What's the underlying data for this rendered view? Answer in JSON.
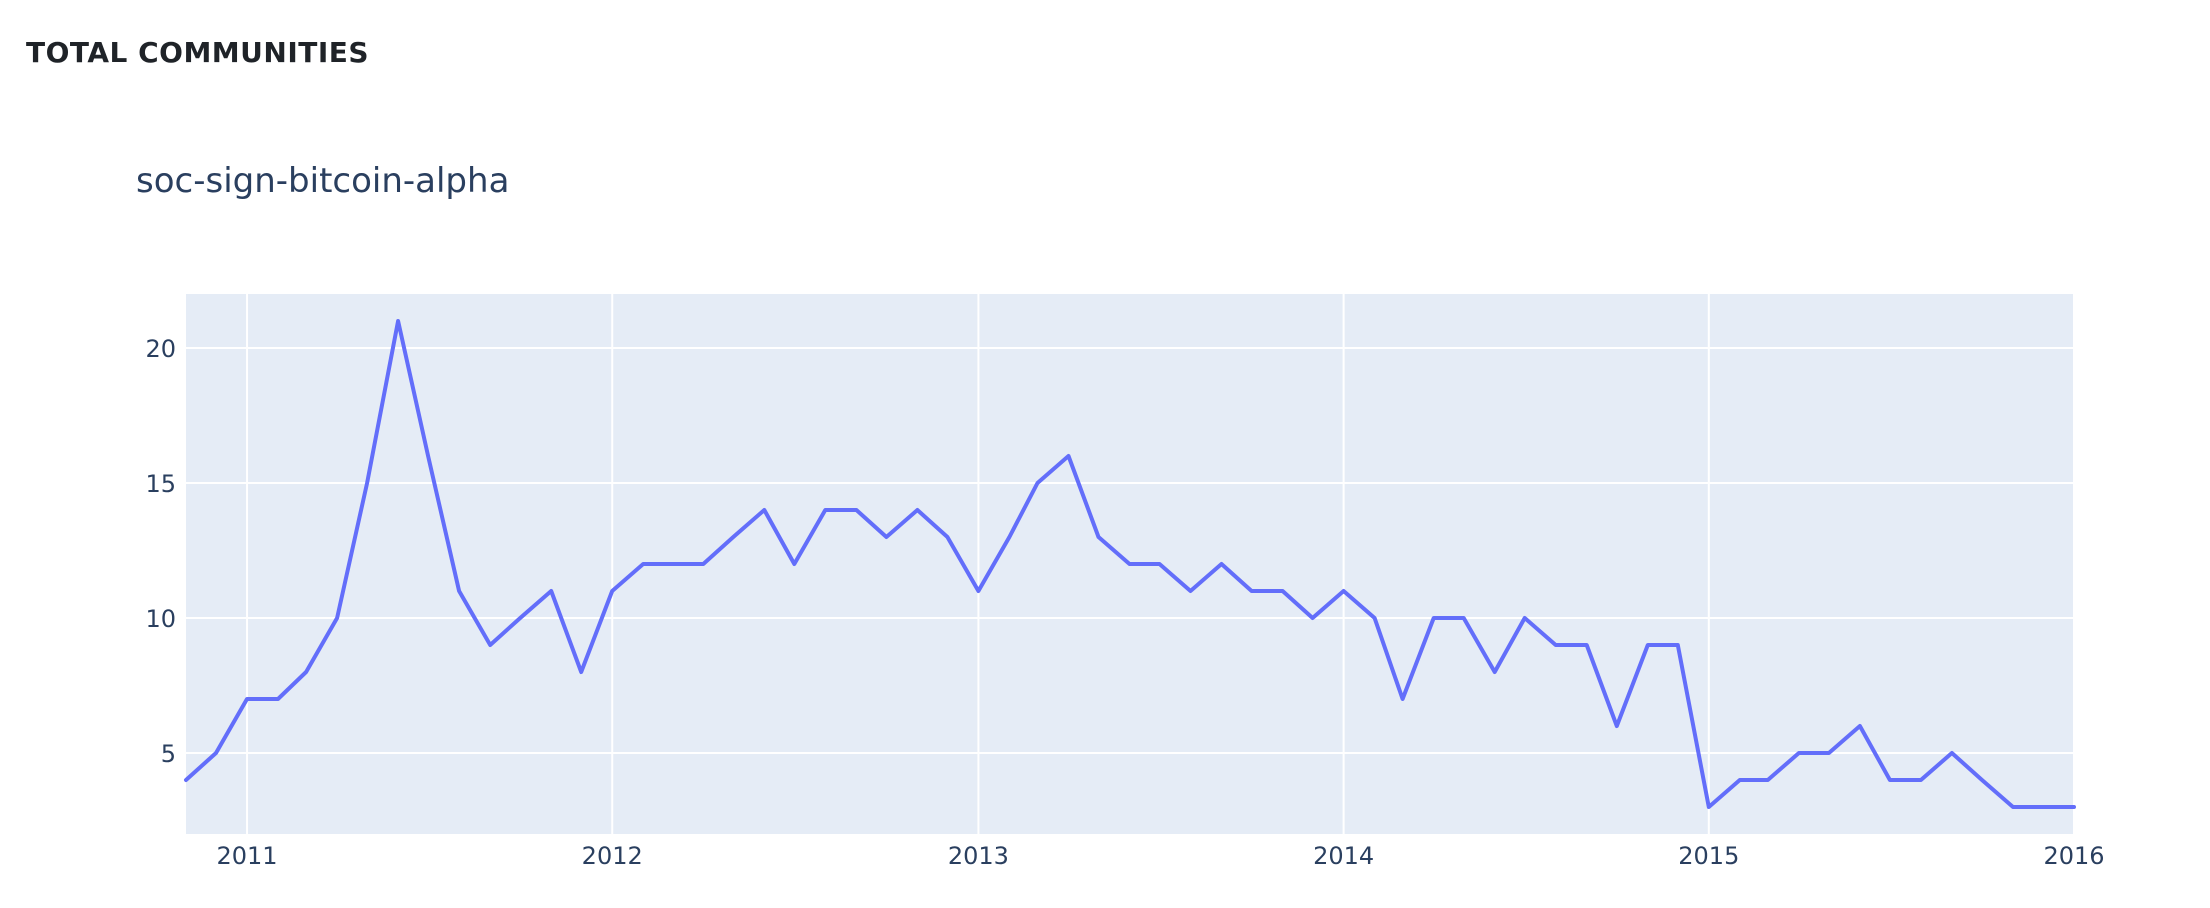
{
  "page": {
    "section_heading": "TOTAL COMMUNITIES"
  },
  "chart_data": {
    "type": "line",
    "title": "soc-sign-bitcoin-alpha",
    "xlabel": "",
    "ylabel": "",
    "x_range": [
      "2010-11-01",
      "2016-01-01"
    ],
    "ylim": [
      2,
      22
    ],
    "x_ticks": [
      "2011-01-01",
      "2012-01-01",
      "2013-01-01",
      "2014-01-01",
      "2015-01-01",
      "2016-01-01"
    ],
    "x_tick_labels": [
      "2011",
      "2012",
      "2013",
      "2014",
      "2015",
      "2016"
    ],
    "y_ticks": [
      5,
      10,
      15,
      20
    ],
    "y_tick_labels": [
      "5",
      "10",
      "15",
      "20"
    ],
    "grid": true,
    "colors": {
      "line": "#636efa",
      "plot_bg": "#e5ecf6",
      "grid": "#ffffff",
      "text": "#2a3f5f"
    },
    "series": [
      {
        "x": [
          "2010-11-01",
          "2010-12-01",
          "2011-01-01",
          "2011-02-01",
          "2011-03-01",
          "2011-04-01",
          "2011-05-01",
          "2011-06-01",
          "2011-07-01",
          "2011-08-01",
          "2011-09-01",
          "2011-10-01",
          "2011-11-01",
          "2011-12-01",
          "2012-01-01",
          "2012-02-01",
          "2012-03-01",
          "2012-04-01",
          "2012-05-01",
          "2012-06-01",
          "2012-07-01",
          "2012-08-01",
          "2012-09-01",
          "2012-10-01",
          "2012-11-01",
          "2012-12-01",
          "2013-01-01",
          "2013-02-01",
          "2013-03-01",
          "2013-04-01",
          "2013-05-01",
          "2013-06-01",
          "2013-07-01",
          "2013-08-01",
          "2013-09-01",
          "2013-10-01",
          "2013-11-01",
          "2013-12-01",
          "2014-01-01",
          "2014-02-01",
          "2014-03-01",
          "2014-04-01",
          "2014-05-01",
          "2014-06-01",
          "2014-07-01",
          "2014-08-01",
          "2014-09-01",
          "2014-10-01",
          "2014-11-01",
          "2014-12-01",
          "2015-01-01",
          "2015-02-01",
          "2015-03-01",
          "2015-04-01",
          "2015-05-01",
          "2015-06-01",
          "2015-07-01",
          "2015-08-01",
          "2015-09-01",
          "2015-10-01",
          "2015-11-01",
          "2015-12-01",
          "2016-01-01"
        ],
        "y": [
          4,
          5,
          7,
          7,
          8,
          10,
          15,
          21,
          16,
          11,
          9,
          10,
          11,
          8,
          11,
          12,
          12,
          12,
          13,
          14,
          12,
          14,
          14,
          13,
          14,
          13,
          11,
          13,
          15,
          16,
          13,
          12,
          12,
          11,
          12,
          11,
          11,
          10,
          11,
          10,
          7,
          10,
          10,
          8,
          10,
          9,
          9,
          6,
          9,
          9,
          3,
          4,
          4,
          5,
          5,
          6,
          4,
          4,
          5,
          4,
          3,
          3,
          3
        ]
      }
    ]
  }
}
